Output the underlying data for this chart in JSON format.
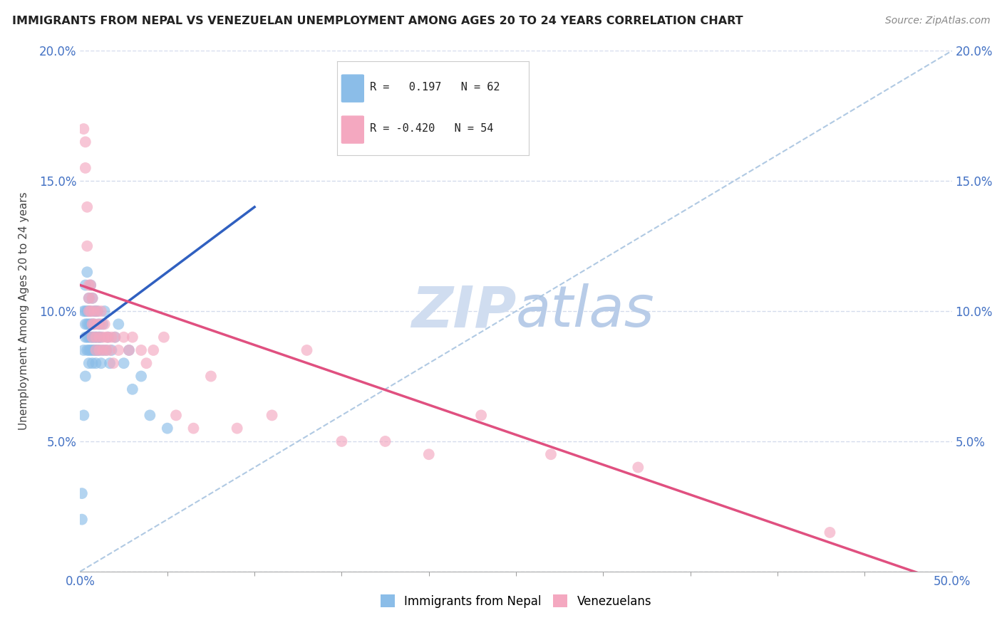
{
  "title": "IMMIGRANTS FROM NEPAL VS VENEZUELAN UNEMPLOYMENT AMONG AGES 20 TO 24 YEARS CORRELATION CHART",
  "source": "Source: ZipAtlas.com",
  "ylabel": "Unemployment Among Ages 20 to 24 years",
  "xlim": [
    0.0,
    0.5
  ],
  "ylim": [
    0.0,
    0.2
  ],
  "xticks": [
    0.0,
    0.5
  ],
  "xticklabels": [
    "0.0%",
    "50.0%"
  ],
  "yticks": [
    0.0,
    0.05,
    0.1,
    0.15,
    0.2
  ],
  "yticklabels": [
    "",
    "5.0%",
    "10.0%",
    "15.0%",
    "20.0%"
  ],
  "nepal_R": 0.197,
  "nepal_N": 62,
  "venezuela_R": -0.42,
  "venezuela_N": 54,
  "nepal_color": "#8bbde8",
  "venezuela_color": "#f4a8c0",
  "nepal_line_color": "#3060c0",
  "venezuela_line_color": "#e05080",
  "dashed_line_color": "#a8c4e0",
  "watermark_zip": "ZIP",
  "watermark_atlas": "atlas",
  "watermark_color": "#c8d8f0",
  "nepal_x": [
    0.001,
    0.001,
    0.002,
    0.002,
    0.002,
    0.003,
    0.003,
    0.003,
    0.003,
    0.003,
    0.004,
    0.004,
    0.004,
    0.004,
    0.004,
    0.005,
    0.005,
    0.005,
    0.005,
    0.005,
    0.005,
    0.006,
    0.006,
    0.006,
    0.006,
    0.006,
    0.007,
    0.007,
    0.007,
    0.007,
    0.007,
    0.008,
    0.008,
    0.008,
    0.008,
    0.009,
    0.009,
    0.009,
    0.009,
    0.01,
    0.01,
    0.01,
    0.011,
    0.011,
    0.011,
    0.012,
    0.012,
    0.013,
    0.013,
    0.014,
    0.015,
    0.016,
    0.017,
    0.018,
    0.02,
    0.022,
    0.025,
    0.028,
    0.03,
    0.035,
    0.04,
    0.05
  ],
  "nepal_y": [
    0.03,
    0.02,
    0.085,
    0.06,
    0.1,
    0.075,
    0.09,
    0.095,
    0.1,
    0.11,
    0.085,
    0.09,
    0.095,
    0.1,
    0.115,
    0.08,
    0.085,
    0.09,
    0.095,
    0.1,
    0.105,
    0.085,
    0.09,
    0.095,
    0.1,
    0.11,
    0.08,
    0.085,
    0.09,
    0.095,
    0.105,
    0.085,
    0.09,
    0.095,
    0.1,
    0.08,
    0.085,
    0.09,
    0.1,
    0.085,
    0.09,
    0.1,
    0.085,
    0.09,
    0.095,
    0.08,
    0.09,
    0.085,
    0.095,
    0.1,
    0.085,
    0.09,
    0.08,
    0.085,
    0.09,
    0.095,
    0.08,
    0.085,
    0.07,
    0.075,
    0.06,
    0.055
  ],
  "venezuela_x": [
    0.002,
    0.003,
    0.003,
    0.004,
    0.004,
    0.005,
    0.005,
    0.005,
    0.006,
    0.006,
    0.007,
    0.007,
    0.007,
    0.008,
    0.008,
    0.009,
    0.009,
    0.01,
    0.01,
    0.011,
    0.011,
    0.012,
    0.012,
    0.013,
    0.013,
    0.014,
    0.015,
    0.015,
    0.016,
    0.017,
    0.018,
    0.019,
    0.02,
    0.022,
    0.025,
    0.028,
    0.03,
    0.035,
    0.038,
    0.042,
    0.048,
    0.055,
    0.065,
    0.075,
    0.09,
    0.11,
    0.13,
    0.15,
    0.175,
    0.2,
    0.23,
    0.27,
    0.32,
    0.43
  ],
  "venezuela_y": [
    0.17,
    0.165,
    0.155,
    0.14,
    0.125,
    0.11,
    0.105,
    0.1,
    0.11,
    0.1,
    0.105,
    0.095,
    0.09,
    0.1,
    0.095,
    0.09,
    0.085,
    0.095,
    0.1,
    0.09,
    0.085,
    0.095,
    0.1,
    0.09,
    0.085,
    0.095,
    0.09,
    0.085,
    0.09,
    0.085,
    0.09,
    0.08,
    0.09,
    0.085,
    0.09,
    0.085,
    0.09,
    0.085,
    0.08,
    0.085,
    0.09,
    0.06,
    0.055,
    0.075,
    0.055,
    0.06,
    0.085,
    0.05,
    0.05,
    0.045,
    0.06,
    0.045,
    0.04,
    0.015
  ]
}
